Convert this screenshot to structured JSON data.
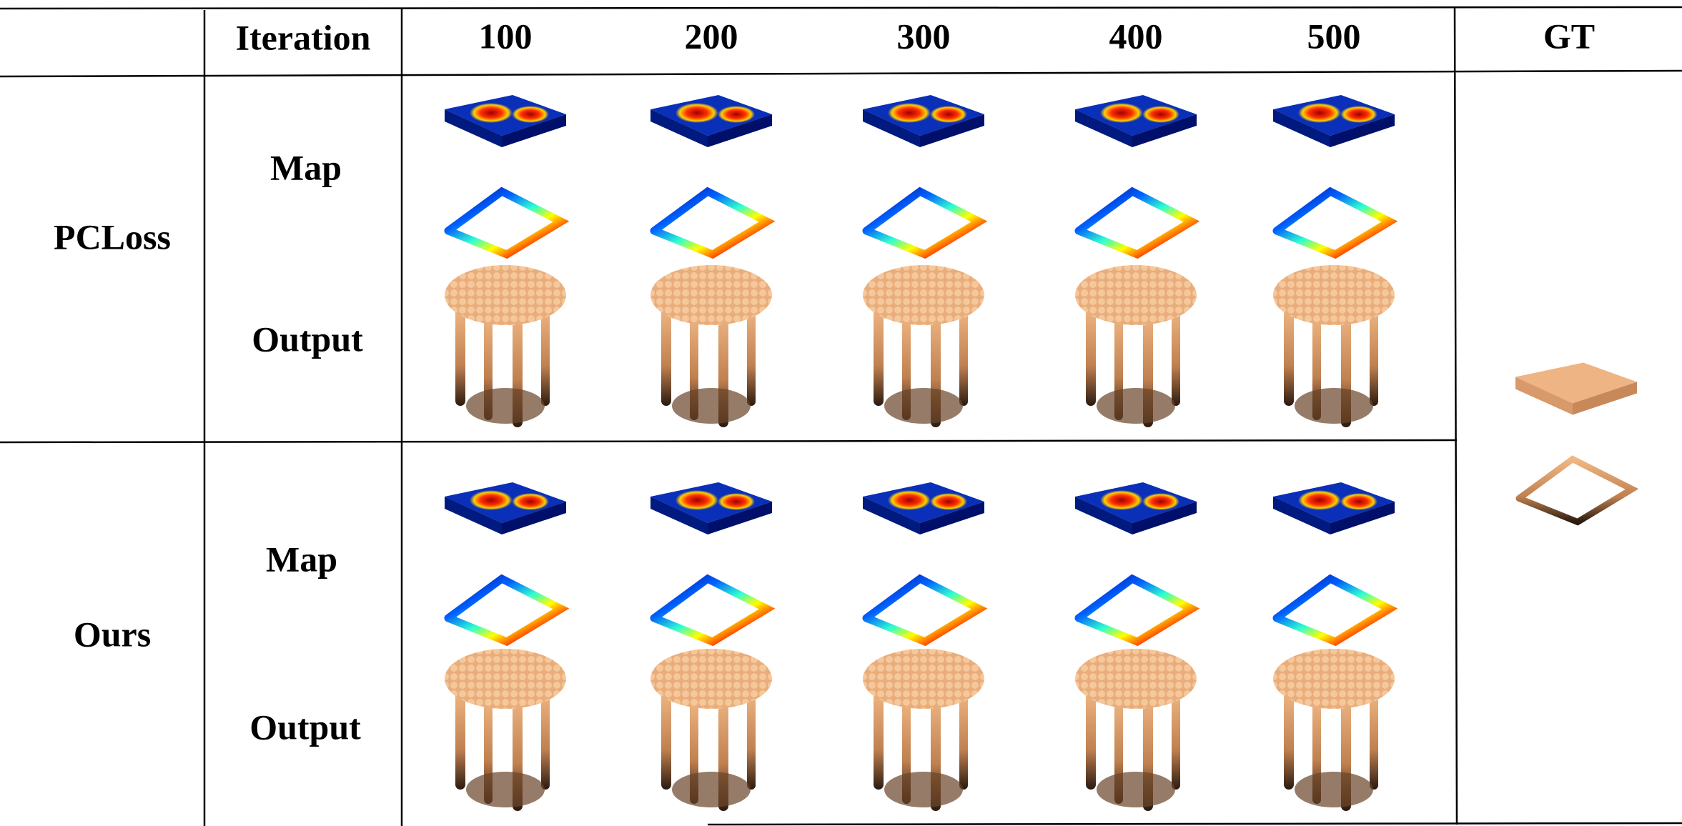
{
  "table": {
    "header": [
      "Iteration",
      "100",
      "200",
      "300",
      "400",
      "500",
      "GT"
    ],
    "groups": [
      {
        "method": "PCLoss",
        "rows": [
          "Map",
          "Output"
        ]
      },
      {
        "method": "Ours",
        "rows": [
          "Map",
          "Output"
        ]
      }
    ]
  }
}
